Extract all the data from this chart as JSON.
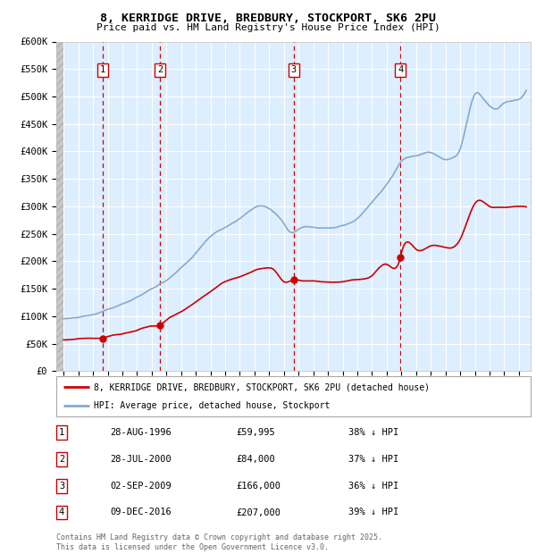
{
  "title1": "8, KERRIDGE DRIVE, BREDBURY, STOCKPORT, SK6 2PU",
  "title2": "Price paid vs. HM Land Registry's House Price Index (HPI)",
  "ylim": [
    0,
    600000
  ],
  "yticks": [
    0,
    50000,
    100000,
    150000,
    200000,
    250000,
    300000,
    350000,
    400000,
    450000,
    500000,
    550000,
    600000
  ],
  "ytick_labels": [
    "£0",
    "£50K",
    "£100K",
    "£150K",
    "£200K",
    "£250K",
    "£300K",
    "£350K",
    "£400K",
    "£450K",
    "£500K",
    "£550K",
    "£600K"
  ],
  "sale_dates": [
    1996.66,
    2000.57,
    2009.67,
    2016.93
  ],
  "sale_prices": [
    59995,
    84000,
    166000,
    207000
  ],
  "sale_labels": [
    "1",
    "2",
    "3",
    "4"
  ],
  "sale_color": "#cc0000",
  "hpi_color": "#88aacc",
  "legend_label_red": "8, KERRIDGE DRIVE, BREDBURY, STOCKPORT, SK6 2PU (detached house)",
  "legend_label_blue": "HPI: Average price, detached house, Stockport",
  "table_data": [
    [
      "1",
      "28-AUG-1996",
      "£59,995",
      "38% ↓ HPI"
    ],
    [
      "2",
      "28-JUL-2000",
      "£84,000",
      "37% ↓ HPI"
    ],
    [
      "3",
      "02-SEP-2009",
      "£166,000",
      "36% ↓ HPI"
    ],
    [
      "4",
      "09-DEC-2016",
      "£207,000",
      "39% ↓ HPI"
    ]
  ],
  "footnote": "Contains HM Land Registry data © Crown copyright and database right 2025.\nThis data is licensed under the Open Government Licence v3.0.",
  "background_color": "#ffffff",
  "plot_bg_color": "#ddeeff",
  "grid_color": "#ffffff",
  "dashed_line_color": "#cc0000",
  "xlim_start": 1993.5,
  "xlim_end": 2025.8
}
